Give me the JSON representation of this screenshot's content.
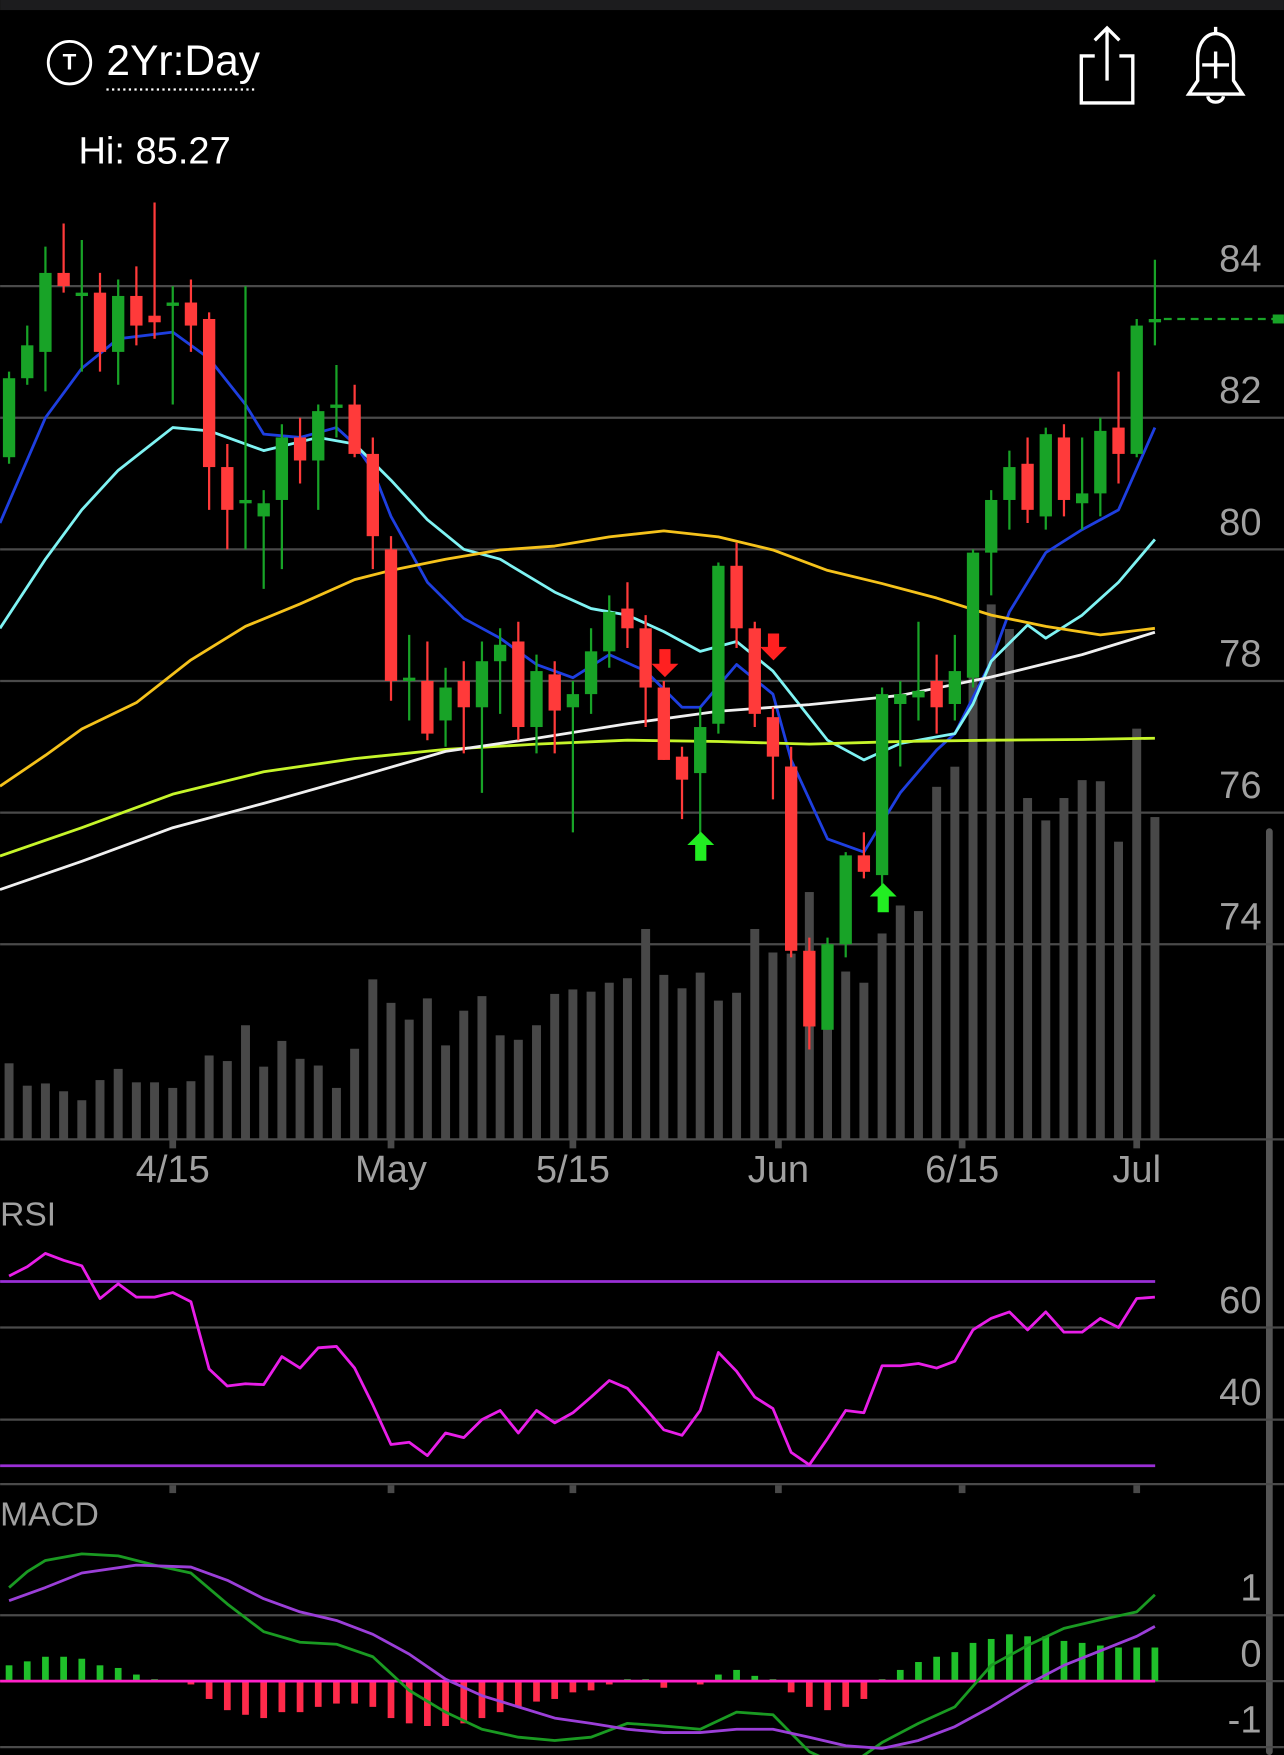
{
  "header": {
    "period": "2Yr:Day",
    "high_label": "Hi: 85.27"
  },
  "chart_data": [
    {
      "type": "candlestick",
      "open": [
        81.4,
        82.6,
        83.0,
        84.2,
        83.85,
        83.9,
        83.0,
        83.85,
        83.55,
        83.7,
        83.75,
        83.5,
        81.25,
        80.7,
        80.5,
        80.75,
        81.7,
        81.35,
        82.15,
        82.2,
        81.45,
        80.0,
        78.0,
        78.0,
        77.4,
        78.0,
        77.6,
        78.3,
        78.6,
        77.3,
        78.1,
        77.6,
        77.8,
        78.45,
        79.1,
        78.8,
        77.9,
        76.85,
        76.6,
        77.35,
        79.75,
        78.8,
        77.45,
        76.7,
        73.9,
        72.7,
        74.0,
        75.35,
        75.05,
        77.65,
        77.75,
        78.0,
        77.65,
        78.05,
        79.95,
        80.75,
        81.3,
        80.5,
        81.7,
        80.7,
        80.85,
        81.85,
        81.45,
        83.45
      ],
      "high": [
        82.7,
        83.4,
        84.6,
        84.95,
        84.7,
        84.2,
        84.1,
        84.3,
        85.27,
        84.0,
        84.1,
        83.6,
        81.6,
        84.0,
        80.9,
        81.9,
        82.0,
        82.2,
        82.8,
        82.5,
        81.7,
        80.2,
        78.7,
        78.6,
        78.2,
        78.3,
        78.6,
        78.8,
        78.9,
        78.4,
        78.3,
        78.0,
        78.8,
        79.3,
        79.5,
        79.0,
        78.0,
        77.0,
        77.6,
        79.8,
        80.1,
        78.9,
        77.6,
        77.0,
        74.1,
        74.1,
        75.4,
        75.7,
        77.9,
        78.0,
        78.9,
        78.4,
        78.7,
        80.0,
        80.9,
        81.5,
        81.7,
        81.85,
        81.9,
        81.7,
        82.0,
        82.7,
        83.5,
        84.4
      ],
      "low": [
        81.3,
        82.5,
        82.4,
        83.9,
        82.7,
        82.7,
        82.5,
        83.1,
        83.2,
        82.2,
        83.0,
        80.6,
        80.0,
        80.0,
        79.4,
        79.7,
        81.0,
        80.6,
        81.7,
        81.4,
        79.7,
        77.7,
        77.4,
        77.1,
        77.0,
        76.9,
        76.3,
        77.5,
        77.1,
        76.9,
        76.9,
        75.7,
        77.5,
        78.2,
        78.5,
        77.3,
        76.8,
        75.9,
        75.3,
        77.2,
        78.5,
        77.3,
        76.2,
        73.8,
        72.4,
        72.7,
        73.8,
        75.0,
        74.9,
        76.7,
        77.4,
        77.2,
        77.4,
        77.9,
        79.3,
        80.3,
        80.4,
        80.3,
        80.5,
        80.3,
        80.5,
        81.0,
        81.4,
        83.1
      ],
      "close": [
        82.6,
        83.1,
        84.2,
        84.0,
        83.9,
        83.0,
        83.85,
        83.4,
        83.45,
        83.75,
        83.4,
        81.25,
        80.6,
        80.75,
        80.7,
        81.7,
        81.35,
        82.1,
        82.2,
        81.45,
        80.2,
        78.0,
        78.05,
        77.2,
        77.9,
        77.6,
        78.3,
        78.55,
        77.3,
        78.15,
        77.55,
        77.8,
        78.45,
        79.05,
        78.8,
        77.9,
        76.8,
        76.5,
        77.3,
        79.75,
        78.8,
        77.5,
        76.85,
        73.9,
        72.75,
        74.0,
        75.35,
        75.1,
        77.8,
        77.8,
        77.85,
        77.6,
        78.15,
        79.95,
        80.75,
        81.25,
        80.6,
        81.75,
        80.75,
        80.85,
        81.8,
        81.45,
        83.4,
        83.5
      ],
      "up_color": "#18a327",
      "down_color": "#ff3a3a",
      "volume": [
        68,
        48,
        50,
        43,
        35,
        53,
        63,
        51,
        51,
        46,
        52,
        75,
        70,
        102,
        65,
        88,
        72,
        66,
        46,
        81,
        143,
        122,
        107,
        126,
        84,
        115,
        128,
        93,
        89,
        102,
        130,
        134,
        132,
        140,
        144,
        188,
        147,
        135,
        149,
        124,
        131,
        188,
        167,
        166,
        221,
        164,
        150,
        140,
        184,
        209,
        204,
        315,
        333,
        418,
        478,
        456,
        305,
        285,
        305,
        321,
        320,
        266,
        367,
        288
      ],
      "volume_color": "#484848",
      "moving_averages": [
        {
          "color": "#1e3fe0",
          "x": [
            -0.5,
            2,
            4,
            6,
            9,
            11,
            13,
            14,
            16,
            18,
            19,
            20,
            21,
            23,
            25,
            27,
            29,
            31,
            33,
            35,
            37,
            38,
            40,
            42,
            43,
            45,
            47,
            49,
            51,
            52,
            54,
            55,
            57,
            59,
            61,
            63
          ],
          "values": [
            80.4,
            82.0,
            82.75,
            83.2,
            83.3,
            82.9,
            82.2,
            81.75,
            81.7,
            81.85,
            81.6,
            81.2,
            80.5,
            79.5,
            78.95,
            78.65,
            78.25,
            78.05,
            78.4,
            78.15,
            77.6,
            77.6,
            78.25,
            77.8,
            76.8,
            75.6,
            75.4,
            76.3,
            76.95,
            77.2,
            78.3,
            79.05,
            79.95,
            80.3,
            80.6,
            81.85
          ]
        },
        {
          "color": "#7ff3f3",
          "x": [
            -0.5,
            2,
            4,
            6,
            9,
            11,
            14,
            17,
            19,
            21,
            23,
            25,
            27,
            30,
            32,
            34,
            36,
            38,
            40,
            42,
            43,
            45,
            47,
            49,
            51,
            52,
            53,
            54,
            56,
            57,
            59,
            60,
            61,
            63
          ],
          "values": [
            78.8,
            79.85,
            80.6,
            81.2,
            81.85,
            81.8,
            81.5,
            81.7,
            81.6,
            81.05,
            80.45,
            80.0,
            79.85,
            79.35,
            79.1,
            79.0,
            78.75,
            78.45,
            78.6,
            78.15,
            77.8,
            77.1,
            76.8,
            77.05,
            77.15,
            77.2,
            77.65,
            78.3,
            78.85,
            78.65,
            79.0,
            79.25,
            79.5,
            80.15
          ]
        },
        {
          "color": "#f5c21b",
          "x": [
            -0.5,
            2,
            4,
            7,
            10,
            13,
            16,
            19,
            21,
            24,
            27,
            30,
            33,
            36,
            39,
            42,
            45,
            48,
            51,
            54,
            57,
            60,
            63
          ],
          "values": [
            76.4,
            76.87,
            77.27,
            77.67,
            78.32,
            78.83,
            79.17,
            79.54,
            79.68,
            79.85,
            79.99,
            80.05,
            80.19,
            80.28,
            80.19,
            79.99,
            79.68,
            79.48,
            79.26,
            79.0,
            78.83,
            78.7,
            78.8
          ]
        },
        {
          "color": "#c6f52a",
          "x": [
            -0.5,
            4,
            9,
            14,
            19,
            24,
            29,
            34,
            39,
            44,
            49,
            54,
            59,
            63
          ],
          "values": [
            75.34,
            75.77,
            76.28,
            76.62,
            76.82,
            76.96,
            77.04,
            77.1,
            77.08,
            77.04,
            77.08,
            77.1,
            77.11,
            77.13
          ]
        },
        {
          "color": "#f0f0f0",
          "x": [
            -0.5,
            4,
            9,
            14,
            19,
            24,
            29,
            34,
            39,
            44,
            49,
            54,
            59,
            63
          ],
          "values": [
            74.83,
            75.26,
            75.77,
            76.14,
            76.53,
            76.93,
            77.13,
            77.35,
            77.54,
            77.64,
            77.78,
            78.06,
            78.4,
            78.74
          ]
        }
      ],
      "xticks": [
        {
          "value": 9,
          "label": "4/15"
        },
        {
          "value": 21,
          "label": "May"
        },
        {
          "value": 31,
          "label": "5/15"
        },
        {
          "value": 42.3,
          "label": "Jun"
        },
        {
          "value": 52.4,
          "label": "6/15"
        },
        {
          "value": 62,
          "label": "Jul"
        }
      ],
      "ylim": [
        71,
        86
      ],
      "yticks": [
        74,
        76,
        78,
        80,
        82,
        84
      ],
      "grid": true
    },
    {
      "type": "line",
      "title": "RSI",
      "color": "#e81ee8",
      "values": [
        71.2,
        73.2,
        76.1,
        74.6,
        73.4,
        66.3,
        69.5,
        66.6,
        66.6,
        67.6,
        65.6,
        51.0,
        47.3,
        47.8,
        47.6,
        53.7,
        51.2,
        55.6,
        55.9,
        51.2,
        43.2,
        34.6,
        35.1,
        32.2,
        37.1,
        36.1,
        40.0,
        42.0,
        37.1,
        42.0,
        39.3,
        41.5,
        44.9,
        48.5,
        46.8,
        42.4,
        37.8,
        36.6,
        42.0,
        54.6,
        50.5,
        44.9,
        42.4,
        32.9,
        30.2,
        35.9,
        42.0,
        41.5,
        51.7,
        51.7,
        52.2,
        51.2,
        52.7,
        59.5,
        62.0,
        63.4,
        59.5,
        63.4,
        59.0,
        59.0,
        62.0,
        60.0,
        66.3,
        66.6
      ],
      "bands": [
        30,
        70
      ],
      "band_color": "#9a2fd6",
      "ylim": [
        26,
        87
      ],
      "yticks": [
        40,
        60
      ],
      "grid": true
    },
    {
      "type": "macd",
      "title": "MACD",
      "macd": {
        "color": "#1a9a22",
        "x": [
          0,
          1,
          2,
          4,
          6,
          8,
          10,
          12,
          14,
          16,
          18,
          20,
          22,
          24,
          26,
          28,
          30,
          32,
          34,
          36,
          38,
          40,
          42,
          44,
          46,
          48,
          50,
          52,
          54,
          56,
          58,
          60,
          62,
          63
        ],
        "values": [
          1.42,
          1.66,
          1.83,
          1.93,
          1.9,
          1.76,
          1.64,
          1.17,
          0.75,
          0.59,
          0.56,
          0.37,
          -0.14,
          -0.47,
          -0.73,
          -0.85,
          -0.9,
          -0.85,
          -0.64,
          -0.68,
          -0.73,
          -0.47,
          -0.51,
          -1.07,
          -1.32,
          -0.93,
          -0.64,
          -0.39,
          0.24,
          0.54,
          0.8,
          0.93,
          1.05,
          1.31
        ]
      },
      "signal": {
        "color": "#9b3fd8",
        "x": [
          0,
          2,
          4,
          7,
          10,
          12,
          14,
          16,
          18,
          20,
          22,
          24,
          26,
          28,
          30,
          32,
          34,
          36,
          38,
          40,
          42,
          44,
          46,
          48,
          50,
          52,
          54,
          56,
          58,
          60,
          62,
          63
        ],
        "values": [
          1.22,
          1.42,
          1.64,
          1.76,
          1.73,
          1.53,
          1.25,
          1.05,
          0.92,
          0.71,
          0.41,
          0.03,
          -0.22,
          -0.39,
          -0.56,
          -0.64,
          -0.73,
          -0.78,
          -0.78,
          -0.73,
          -0.73,
          -0.85,
          -0.98,
          -1.02,
          -0.9,
          -0.69,
          -0.39,
          -0.05,
          0.24,
          0.46,
          0.68,
          0.83
        ]
      },
      "histogram": [
        0.24,
        0.3,
        0.37,
        0.37,
        0.34,
        0.24,
        0.2,
        0.1,
        0.03,
        0,
        -0.05,
        -0.27,
        -0.44,
        -0.51,
        -0.56,
        -0.47,
        -0.47,
        -0.39,
        -0.34,
        -0.34,
        -0.39,
        -0.56,
        -0.64,
        -0.68,
        -0.68,
        -0.64,
        -0.56,
        -0.47,
        -0.39,
        -0.31,
        -0.27,
        -0.17,
        -0.14,
        -0.05,
        0.03,
        0.03,
        -0.1,
        0,
        -0.05,
        0.1,
        0.17,
        0.08,
        0.03,
        -0.17,
        -0.39,
        -0.44,
        -0.39,
        -0.27,
        0.03,
        0.17,
        0.29,
        0.37,
        0.44,
        0.58,
        0.64,
        0.71,
        0.68,
        0.68,
        0.61,
        0.58,
        0.54,
        0.51,
        0.51,
        0.51
      ],
      "up_color": "#1fc02a",
      "down_color": "#ff2a4a",
      "zero_color": "#ff22c8",
      "ylim": [
        -1.12,
        2.75
      ],
      "yticks": [
        -1,
        0,
        1
      ],
      "grid": true
    }
  ]
}
